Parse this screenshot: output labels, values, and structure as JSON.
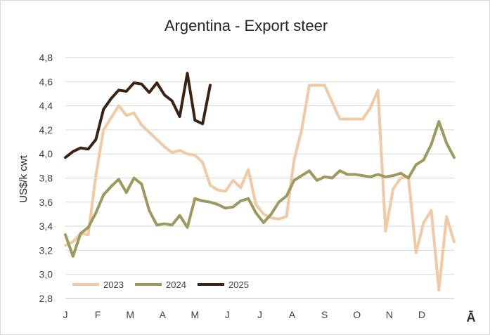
{
  "chart_data": {
    "type": "line",
    "title": "Argentina - Export steer",
    "ylabel": "US$/k cwt",
    "xlabel": "",
    "ylim": [
      2.8,
      4.8
    ],
    "y_ticks": [
      "2,8",
      "3,0",
      "3,2",
      "3,4",
      "3,6",
      "3,8",
      "4,0",
      "4,2",
      "4,4",
      "4,6",
      "4,8"
    ],
    "x_ticks": [
      "J",
      "F",
      "M",
      "A",
      "M",
      "J",
      "J",
      "A",
      "S",
      "O",
      "N",
      "D"
    ],
    "x_range_weeks": [
      1,
      52
    ],
    "grid": "horizontal",
    "legend_position": "bottom-left",
    "series": [
      {
        "name": "2023",
        "color": "#f1c9a5",
        "x": [
          1,
          2,
          3,
          4,
          5,
          6,
          7,
          8,
          9,
          10,
          11,
          12,
          13,
          14,
          15,
          16,
          17,
          18,
          19,
          20,
          21,
          22,
          23,
          24,
          25,
          26,
          27,
          28,
          29,
          30,
          31,
          32,
          33,
          34,
          35,
          36,
          37,
          38,
          39,
          40,
          41,
          42,
          43,
          44,
          45,
          46,
          47,
          48,
          49,
          50,
          51,
          52
        ],
        "values": [
          3.24,
          3.27,
          3.34,
          3.33,
          3.82,
          4.2,
          4.3,
          4.4,
          4.32,
          4.34,
          4.24,
          4.18,
          4.12,
          4.06,
          4.01,
          4.03,
          4.0,
          3.99,
          3.93,
          3.74,
          3.7,
          3.69,
          3.78,
          3.72,
          3.87,
          3.58,
          3.5,
          3.47,
          3.46,
          3.48,
          3.95,
          4.2,
          4.57,
          4.57,
          4.57,
          4.43,
          4.29,
          4.29,
          4.29,
          4.29,
          4.38,
          4.53,
          3.36,
          3.71,
          3.8,
          3.81,
          3.18,
          3.43,
          3.53,
          2.87,
          3.48,
          3.27
        ]
      },
      {
        "name": "2024",
        "color": "#9c9a5e",
        "x": [
          1,
          2,
          3,
          4,
          5,
          6,
          7,
          8,
          9,
          10,
          11,
          12,
          13,
          14,
          15,
          16,
          17,
          18,
          19,
          20,
          21,
          22,
          23,
          24,
          25,
          26,
          27,
          28,
          29,
          30,
          31,
          32,
          33,
          34,
          35,
          36,
          37,
          38,
          39,
          40,
          41,
          42,
          43,
          44,
          45,
          46,
          47,
          48,
          49,
          50,
          51,
          52
        ],
        "values": [
          3.33,
          3.15,
          3.34,
          3.39,
          3.51,
          3.66,
          3.73,
          3.79,
          3.68,
          3.8,
          3.75,
          3.53,
          3.41,
          3.42,
          3.41,
          3.49,
          3.39,
          3.63,
          3.61,
          3.6,
          3.58,
          3.55,
          3.56,
          3.61,
          3.63,
          3.51,
          3.43,
          3.5,
          3.6,
          3.65,
          3.78,
          3.82,
          3.86,
          3.78,
          3.81,
          3.8,
          3.86,
          3.83,
          3.83,
          3.82,
          3.81,
          3.83,
          3.81,
          3.82,
          3.84,
          3.8,
          3.91,
          3.95,
          4.08,
          4.27,
          4.09,
          3.97
        ]
      },
      {
        "name": "2025",
        "color": "#3b2314",
        "x": [
          1,
          2,
          3,
          4,
          5,
          6,
          7,
          8,
          9,
          10,
          11,
          12,
          13,
          14,
          15,
          16,
          17,
          18,
          19,
          20
        ],
        "values": [
          3.97,
          4.02,
          4.05,
          4.04,
          4.12,
          4.37,
          4.46,
          4.53,
          4.52,
          4.59,
          4.58,
          4.51,
          4.59,
          4.49,
          4.44,
          4.31,
          4.67,
          4.28,
          4.25,
          4.57
        ]
      }
    ]
  },
  "logo": {
    "glyph": "Ā"
  }
}
